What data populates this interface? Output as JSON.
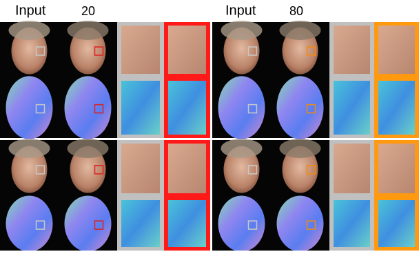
{
  "panels": [
    {
      "label": "Input",
      "age": "20"
    },
    {
      "label": "Input",
      "age": "80"
    }
  ]
}
